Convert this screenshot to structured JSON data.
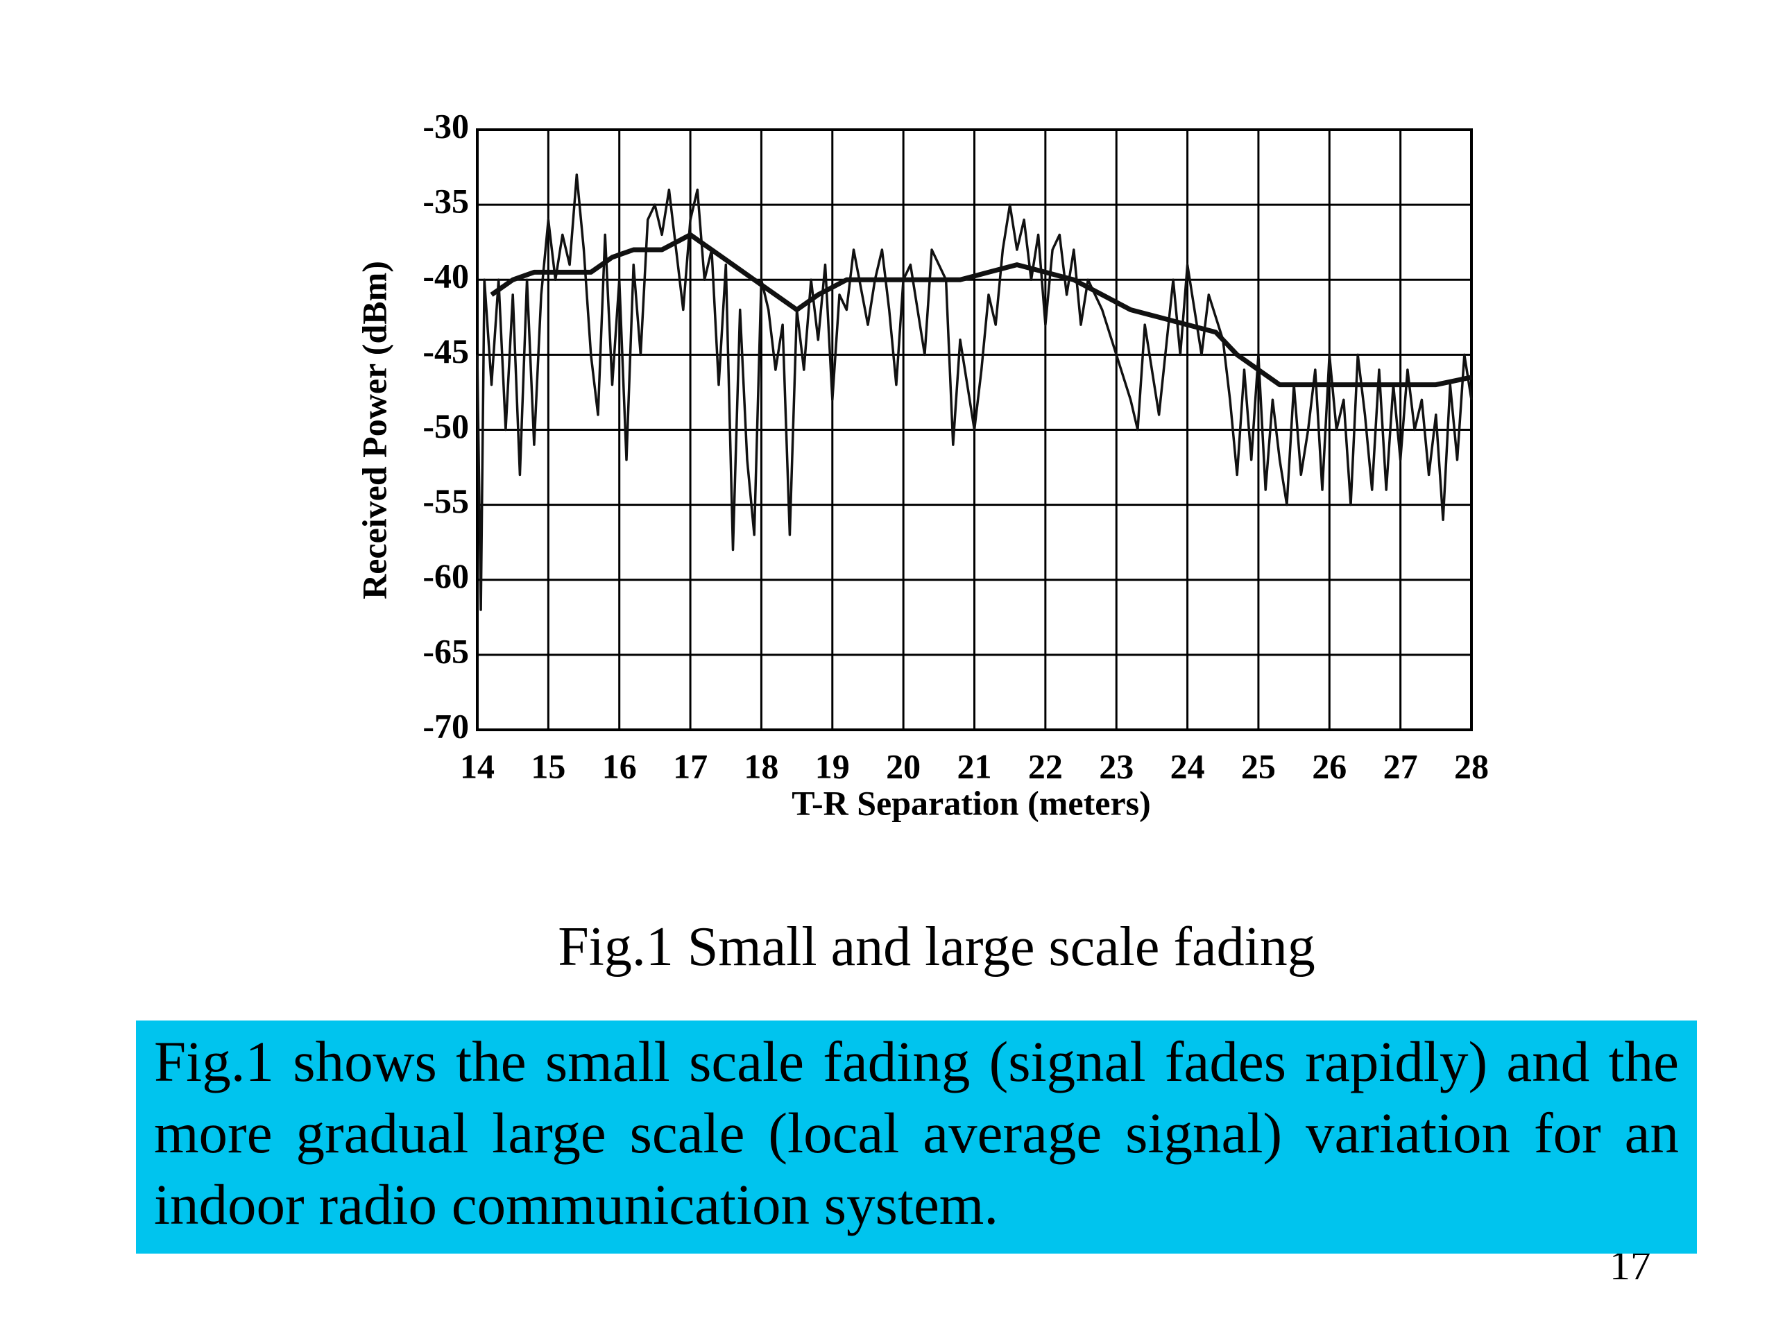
{
  "chart_data": {
    "type": "line",
    "xlabel": "T-R Separation (meters)",
    "ylabel": "Received Power (dBm)",
    "xlim": [
      14,
      28
    ],
    "xticks": [
      14,
      15,
      16,
      17,
      18,
      19,
      20,
      21,
      22,
      23,
      24,
      25,
      26,
      27,
      28
    ],
    "ylim": [
      -70,
      -30
    ],
    "yticks": [
      -30,
      -35,
      -40,
      -45,
      -50,
      -55,
      -60,
      -65,
      -70
    ],
    "grid": true,
    "series": [
      {
        "color": "#111111",
        "x": [
          14.0,
          14.05,
          14.1,
          14.2,
          14.3,
          14.4,
          14.5,
          14.6,
          14.7,
          14.8,
          14.9,
          15.0,
          15.1,
          15.2,
          15.3,
          15.4,
          15.5,
          15.6,
          15.7,
          15.8,
          15.9,
          16.0,
          16.1,
          16.2,
          16.3,
          16.4,
          16.5,
          16.6,
          16.7,
          16.8,
          16.9,
          17.0,
          17.1,
          17.2,
          17.3,
          17.4,
          17.5,
          17.6,
          17.7,
          17.8,
          17.9,
          18.0,
          18.1,
          18.2,
          18.3,
          18.4,
          18.5,
          18.6,
          18.7,
          18.8,
          18.9,
          19.0,
          19.1,
          19.2,
          19.3,
          19.5,
          19.6,
          19.7,
          19.8,
          19.9,
          20.0,
          20.1,
          20.3,
          20.4,
          20.6,
          20.7,
          20.8,
          20.9,
          21.0,
          21.1,
          21.2,
          21.3,
          21.4,
          21.5,
          21.6,
          21.7,
          21.8,
          21.9,
          22.0,
          22.1,
          22.2,
          22.3,
          22.4,
          22.5,
          22.6,
          22.8,
          23.0,
          23.2,
          23.3,
          23.4,
          23.6,
          23.8,
          23.9,
          24.0,
          24.2,
          24.3,
          24.5,
          24.6,
          24.7,
          24.8,
          24.9,
          25.0,
          25.1,
          25.2,
          25.3,
          25.4,
          25.5,
          25.6,
          25.7,
          25.8,
          25.9,
          26.0,
          26.1,
          26.2,
          26.3,
          26.4,
          26.5,
          26.6,
          26.7,
          26.8,
          26.9,
          27.0,
          27.1,
          27.2,
          27.3,
          27.4,
          27.5,
          27.6,
          27.7,
          27.8,
          27.9,
          28.0
        ],
        "values": [
          -45,
          -62,
          -40,
          -47,
          -40,
          -50,
          -41,
          -53,
          -40,
          -51,
          -41,
          -36,
          -40,
          -37,
          -39,
          -33,
          -38,
          -45,
          -49,
          -37,
          -47,
          -40,
          -52,
          -39,
          -45,
          -36,
          -35,
          -37,
          -34,
          -38,
          -42,
          -36,
          -34,
          -40,
          -38,
          -47,
          -39,
          -58,
          -42,
          -52,
          -57,
          -40,
          -42,
          -46,
          -43,
          -57,
          -42,
          -46,
          -40,
          -44,
          -39,
          -48,
          -41,
          -42,
          -38,
          -43,
          -40,
          -38,
          -42,
          -47,
          -40,
          -39,
          -45,
          -38,
          -40,
          -51,
          -44,
          -47,
          -50,
          -46,
          -41,
          -43,
          -38,
          -35,
          -38,
          -36,
          -40,
          -37,
          -43,
          -38,
          -37,
          -41,
          -38,
          -43,
          -40,
          -42,
          -45,
          -48,
          -50,
          -43,
          -49,
          -40,
          -45,
          -39,
          -45,
          -41,
          -44,
          -48,
          -53,
          -46,
          -52,
          -45,
          -54,
          -48,
          -52,
          -55,
          -47,
          -53,
          -50,
          -46,
          -54,
          -45,
          -50,
          -48,
          -55,
          -45,
          -49,
          -54,
          -46,
          -54,
          -47,
          -52,
          -46,
          -50,
          -48,
          -53,
          -49,
          -56,
          -47,
          -52,
          -45,
          -48
        ]
      },
      {
        "color": "#111111",
        "x": [
          14.2,
          14.5,
          14.8,
          15.2,
          15.6,
          15.9,
          16.2,
          16.6,
          17.0,
          17.3,
          17.6,
          17.9,
          18.2,
          18.5,
          18.8,
          19.2,
          19.6,
          20.0,
          20.4,
          20.8,
          21.2,
          21.6,
          22.0,
          22.4,
          22.8,
          23.2,
          23.6,
          24.0,
          24.4,
          24.7,
          25.0,
          25.3,
          25.6,
          26.0,
          26.5,
          27.0,
          27.5,
          28.0
        ],
        "values": [
          -41,
          -40,
          -39.5,
          -39.5,
          -39.5,
          -38.5,
          -38,
          -38,
          -37,
          -38,
          -39,
          -40,
          -41,
          -42,
          -41,
          -40,
          -40,
          -40,
          -40,
          -40,
          -39.5,
          -39,
          -39.5,
          -40,
          -41,
          -42,
          -42.5,
          -43,
          -43.5,
          -45,
          -46,
          -47,
          -47,
          -47,
          -47,
          -47,
          -47,
          -46.5
        ]
      }
    ]
  },
  "caption": "Fig.1 Small and large scale fading",
  "body": "Fig.1 shows the small scale fading (signal fades rapidly) and the more gradual large scale (local average signal) variation for an indoor radio communication system.",
  "page_number": "17"
}
